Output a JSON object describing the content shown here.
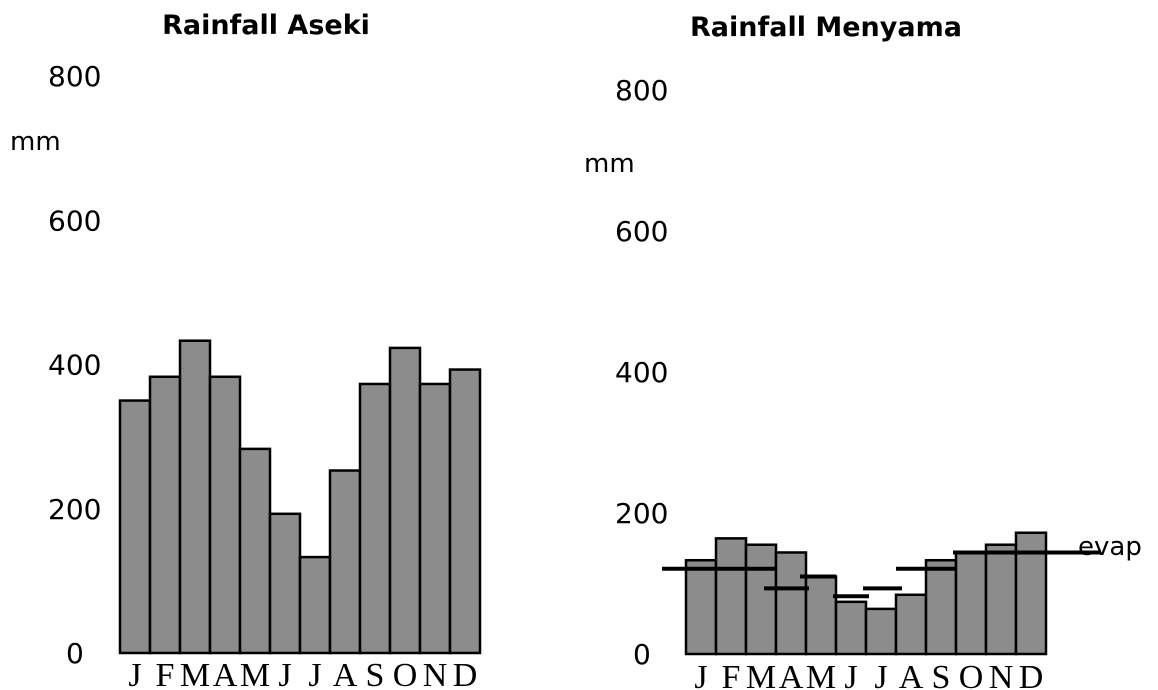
{
  "chart_data": [
    {
      "type": "bar",
      "title": "Rainfall Aseki",
      "ylabel": "mm",
      "ylim": [
        0,
        800
      ],
      "yticks": [
        0,
        200,
        400,
        600,
        800
      ],
      "categories": [
        "J",
        "F",
        "M",
        "A",
        "M",
        "J",
        "J",
        "A",
        "S",
        "O",
        "N",
        "D"
      ],
      "values": [
        350,
        383,
        433,
        383,
        283,
        193,
        133,
        253,
        373,
        423,
        373,
        393
      ],
      "grid": false
    },
    {
      "type": "bar",
      "title": "Rainfall Menyama",
      "ylabel": "mm",
      "ylim": [
        0,
        800
      ],
      "yticks": [
        0,
        200,
        400,
        600,
        800
      ],
      "categories": [
        "J",
        "F",
        "M",
        "A",
        "M",
        "J",
        "J",
        "A",
        "S",
        "O",
        "N",
        "D"
      ],
      "values": [
        133,
        164,
        155,
        144,
        110,
        74,
        64,
        84,
        133,
        144,
        155,
        172
      ],
      "evap": [
        121,
        121,
        121,
        93,
        110,
        82,
        93,
        121,
        121,
        144,
        144,
        144
      ],
      "annotation": "evap",
      "grid": false
    }
  ]
}
